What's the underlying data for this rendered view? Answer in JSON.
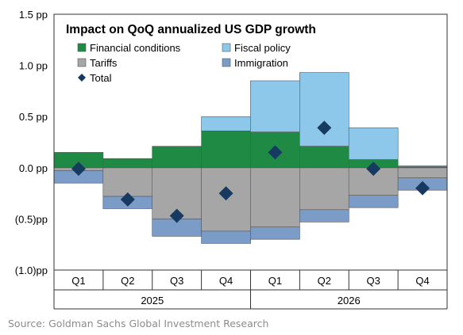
{
  "chart_data": {
    "type": "bar",
    "stacked": true,
    "title": "Impact on QoQ annualized US GDP growth",
    "categories": [
      "Q1",
      "Q2",
      "Q3",
      "Q4",
      "Q1",
      "Q2",
      "Q3",
      "Q4"
    ],
    "years": [
      {
        "label": "2025",
        "quarters": 4
      },
      {
        "label": "2026",
        "quarters": 4
      }
    ],
    "series": [
      {
        "name": "Financial conditions",
        "color": "#1e8a44",
        "values": [
          0.15,
          0.09,
          0.21,
          0.36,
          0.35,
          0.21,
          0.08,
          0.01
        ]
      },
      {
        "name": "Fiscal policy",
        "color": "#8dc8ea",
        "values": [
          0.0,
          0.0,
          0.0,
          0.14,
          0.5,
          0.72,
          0.31,
          0.01
        ]
      },
      {
        "name": "Tariffs",
        "color": "#a6a6a6",
        "values": [
          -0.03,
          -0.28,
          -0.5,
          -0.62,
          -0.58,
          -0.41,
          -0.27,
          -0.1
        ]
      },
      {
        "name": "Immigration",
        "color": "#7a9cc6",
        "values": [
          -0.12,
          -0.12,
          -0.17,
          -0.12,
          -0.12,
          -0.12,
          -0.12,
          -0.12
        ]
      }
    ],
    "total": {
      "name": "Total",
      "color": "#173b60",
      "values": [
        -0.01,
        -0.31,
        -0.47,
        -0.25,
        0.15,
        0.39,
        -0.01,
        -0.2
      ]
    },
    "y_tick_labels": [
      "1.5 pp",
      "1.0 pp",
      "0.5 pp",
      "0.0 pp",
      "(0.5)pp",
      "(1.0)pp"
    ],
    "y_tick_values": [
      1.5,
      1.0,
      0.5,
      0.0,
      -0.5,
      -1.0
    ],
    "ylim": [
      -1.0,
      1.5
    ],
    "grid": false,
    "legend_position": "top-left"
  },
  "source": "Source: Goldman Sachs Global Investment Research"
}
